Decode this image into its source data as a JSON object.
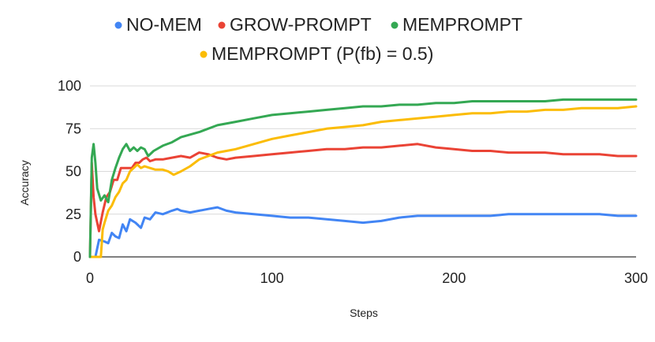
{
  "chart_data": {
    "type": "line",
    "title": "",
    "xlabel": "Steps",
    "ylabel": "Accuracy",
    "xlim": [
      0,
      300
    ],
    "ylim": [
      0,
      100
    ],
    "x_ticks": [
      "0",
      "100",
      "200",
      "300"
    ],
    "y_ticks": [
      "0",
      "25",
      "50",
      "75",
      "100"
    ],
    "grid": "horizontal",
    "legend_position": "top",
    "series": [
      {
        "name": "NO-MEM",
        "color": "#4285f4",
        "x": [
          0,
          3,
          5,
          8,
          10,
          12,
          14,
          16,
          18,
          20,
          22,
          25,
          28,
          30,
          33,
          36,
          40,
          45,
          48,
          50,
          55,
          60,
          65,
          70,
          75,
          80,
          90,
          100,
          110,
          120,
          130,
          140,
          150,
          160,
          170,
          180,
          190,
          200,
          210,
          220,
          230,
          240,
          250,
          260,
          270,
          280,
          290,
          300
        ],
        "values": [
          0,
          0,
          10,
          9,
          8,
          14,
          12,
          11,
          19,
          15,
          22,
          20,
          17,
          23,
          22,
          26,
          25,
          27,
          28,
          27,
          26,
          27,
          28,
          29,
          27,
          26,
          25,
          24,
          23,
          23,
          22,
          21,
          20,
          21,
          23,
          24,
          24,
          24,
          24,
          24,
          25,
          25,
          25,
          25,
          25,
          25,
          24,
          24
        ]
      },
      {
        "name": "GROW-PROMPT",
        "color": "#ea4335",
        "x": [
          0,
          1,
          2,
          3,
          5,
          7,
          9,
          11,
          13,
          15,
          17,
          19,
          21,
          23,
          25,
          27,
          29,
          31,
          33,
          36,
          40,
          45,
          50,
          55,
          60,
          65,
          70,
          75,
          80,
          90,
          100,
          110,
          120,
          130,
          140,
          150,
          160,
          170,
          180,
          190,
          200,
          210,
          220,
          230,
          240,
          250,
          260,
          270,
          280,
          290,
          300
        ],
        "values": [
          0,
          55,
          35,
          25,
          15,
          26,
          35,
          38,
          45,
          45,
          52,
          52,
          52,
          52,
          55,
          55,
          57,
          58,
          56,
          57,
          57,
          58,
          59,
          58,
          61,
          60,
          58,
          57,
          58,
          59,
          60,
          61,
          62,
          63,
          63,
          64,
          64,
          65,
          66,
          64,
          63,
          62,
          62,
          61,
          61,
          61,
          60,
          60,
          60,
          59,
          59
        ]
      },
      {
        "name": "MEMPROMPT",
        "color": "#34a853",
        "x": [
          0,
          1,
          2,
          3,
          4,
          6,
          8,
          10,
          12,
          14,
          16,
          18,
          20,
          22,
          24,
          26,
          28,
          30,
          32,
          35,
          40,
          45,
          50,
          60,
          70,
          80,
          90,
          100,
          110,
          120,
          130,
          140,
          150,
          160,
          170,
          180,
          190,
          200,
          210,
          220,
          230,
          240,
          250,
          260,
          270,
          280,
          290,
          300
        ],
        "values": [
          0,
          58,
          66,
          55,
          40,
          33,
          36,
          32,
          45,
          52,
          58,
          63,
          66,
          62,
          64,
          62,
          64,
          63,
          59,
          62,
          65,
          67,
          70,
          73,
          77,
          79,
          81,
          83,
          84,
          85,
          86,
          87,
          88,
          88,
          89,
          89,
          90,
          90,
          91,
          91,
          91,
          91,
          91,
          92,
          92,
          92,
          92,
          92
        ]
      },
      {
        "name": "MEMPROMPT (P(fb) = 0.5)",
        "color": "#fbbc04",
        "x": [
          0,
          3,
          5,
          6,
          7,
          8,
          10,
          12,
          14,
          16,
          18,
          20,
          22,
          24,
          26,
          28,
          30,
          33,
          36,
          40,
          43,
          46,
          50,
          55,
          60,
          65,
          70,
          75,
          80,
          90,
          100,
          110,
          120,
          130,
          140,
          150,
          160,
          170,
          180,
          190,
          200,
          210,
          220,
          230,
          240,
          250,
          260,
          270,
          280,
          290,
          300
        ],
        "values": [
          0,
          0,
          0,
          0,
          16,
          20,
          27,
          30,
          35,
          38,
          43,
          45,
          50,
          52,
          54,
          52,
          53,
          52,
          51,
          51,
          50,
          48,
          50,
          53,
          57,
          59,
          61,
          62,
          63,
          66,
          69,
          71,
          73,
          75,
          76,
          77,
          79,
          80,
          81,
          82,
          83,
          84,
          84,
          85,
          85,
          86,
          86,
          87,
          87,
          87,
          88
        ]
      }
    ]
  }
}
